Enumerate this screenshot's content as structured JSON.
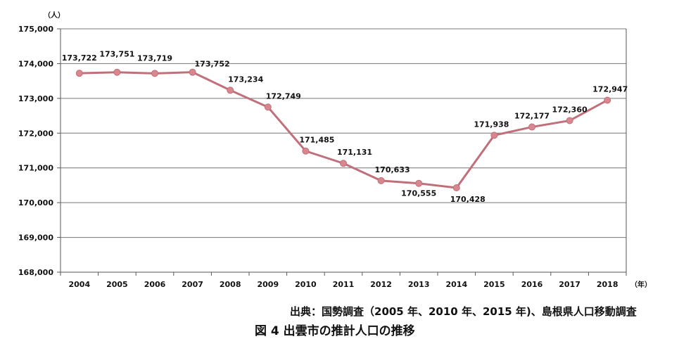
{
  "chart_data": {
    "type": "line",
    "categories": [
      "2004",
      "2005",
      "2006",
      "2007",
      "2008",
      "2009",
      "2010",
      "2011",
      "2012",
      "2013",
      "2014",
      "2015",
      "2016",
      "2017",
      "2018"
    ],
    "values": [
      173722,
      173751,
      173719,
      173752,
      173234,
      172749,
      171485,
      171131,
      170633,
      170555,
      170428,
      171938,
      172177,
      172360,
      172947
    ],
    "data_labels": [
      "173,722",
      "173,751",
      "173,719",
      "173,752",
      "173,234",
      "172,749",
      "171,485",
      "171,131",
      "170,633",
      "170,555",
      "170,428",
      "171,938",
      "172,177",
      "172,360",
      "172,947"
    ],
    "ylim": [
      168000,
      175000
    ],
    "yticks": [
      168000,
      169000,
      170000,
      171000,
      172000,
      173000,
      174000,
      175000
    ],
    "ytick_labels": [
      "168,000",
      "169,000",
      "170,000",
      "171,000",
      "172,000",
      "173,000",
      "174,000",
      "175,000"
    ],
    "ylabel": "（人）",
    "xlabel": "（年）",
    "grid": true,
    "line_color": "#c0707a",
    "marker_color": "#d9878f"
  },
  "source": "出典：国勢調査（2005 年、2010 年、2015 年)、島根県人口移動調査",
  "title": "図 4  出雲市の推計人口の推移"
}
